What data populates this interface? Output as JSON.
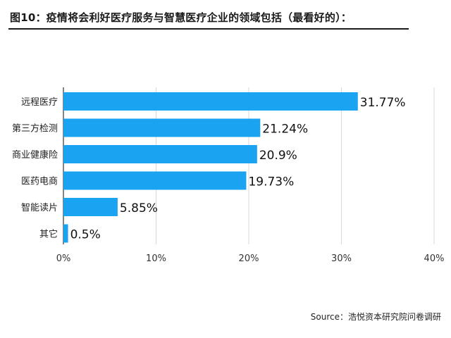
{
  "title": "图10：疫情将会利好医疗服务与智慧医疗企业的领域包括（最看好的）：",
  "source": "Source：浩悦资本研究院问卷调研",
  "colors": {
    "bar": "#1aa3f0",
    "grid": "#d9d9d9",
    "axis": "#333333"
  },
  "chart_data": {
    "type": "bar",
    "orientation": "horizontal",
    "categories": [
      "远程医疗",
      "第三方检测",
      "商业健康险",
      "医药电商",
      "智能读片",
      "其它"
    ],
    "values": [
      31.77,
      21.24,
      20.9,
      19.73,
      5.85,
      0.5
    ],
    "value_labels": [
      "31.77%",
      "21.24%",
      "20.9%",
      "19.73%",
      "5.85%",
      "0.5%"
    ],
    "xlim": [
      0,
      40
    ],
    "x_ticks": [
      0,
      10,
      20,
      30,
      40
    ],
    "x_tick_labels": [
      "0%",
      "10%",
      "20%",
      "30%",
      "40%"
    ],
    "grid": true,
    "legend": "none"
  }
}
